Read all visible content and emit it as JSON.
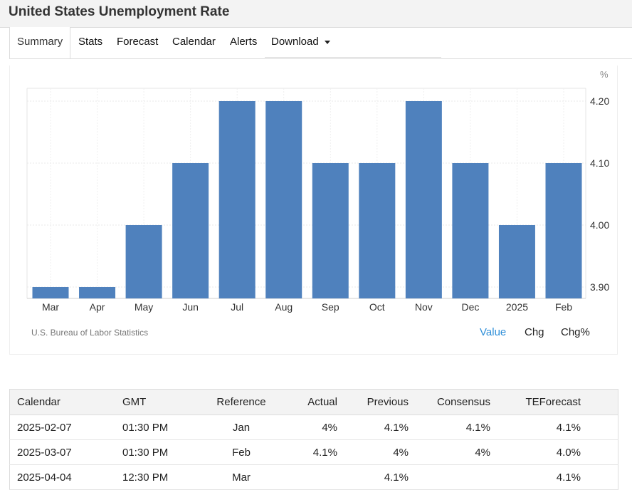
{
  "header": {
    "title": "United States Unemployment Rate"
  },
  "tabs": [
    {
      "label": "Summary",
      "active": true
    },
    {
      "label": "Stats"
    },
    {
      "label": "Forecast"
    },
    {
      "label": "Calendar"
    },
    {
      "label": "Alerts"
    },
    {
      "label": "Download",
      "dropdown": true
    }
  ],
  "chart_data": {
    "type": "bar",
    "categories": [
      "Mar",
      "Apr",
      "May",
      "Jun",
      "Jul",
      "Aug",
      "Sep",
      "Oct",
      "Nov",
      "Dec",
      "2025",
      "Feb"
    ],
    "values": [
      3.9,
      3.9,
      4.0,
      4.1,
      4.2,
      4.2,
      4.1,
      4.1,
      4.2,
      4.1,
      4.0,
      4.1
    ],
    "unit_label": "%",
    "y_ticks": [
      "3.90",
      "4.00",
      "4.10",
      "4.20"
    ],
    "ylim": [
      3.88,
      4.22
    ],
    "y_axis_side": "right",
    "grid": true,
    "bar_color": "#4f81bd",
    "source": "U.S. Bureau of Labor Statistics",
    "toggles": [
      {
        "label": "Value",
        "active": true
      },
      {
        "label": "Chg"
      },
      {
        "label": "Chg%"
      }
    ]
  },
  "calendar": {
    "columns": [
      "Calendar",
      "GMT",
      "Reference",
      "Actual",
      "Previous",
      "Consensus",
      "TEForecast"
    ],
    "rows": [
      [
        "2025-02-07",
        "01:30 PM",
        "Jan",
        "4%",
        "4.1%",
        "4.1%",
        "4.1%"
      ],
      [
        "2025-03-07",
        "01:30 PM",
        "Feb",
        "4.1%",
        "4%",
        "4%",
        "4.0%"
      ],
      [
        "2025-04-04",
        "12:30 PM",
        "Mar",
        "",
        "4.1%",
        "",
        "4.1%"
      ]
    ]
  }
}
